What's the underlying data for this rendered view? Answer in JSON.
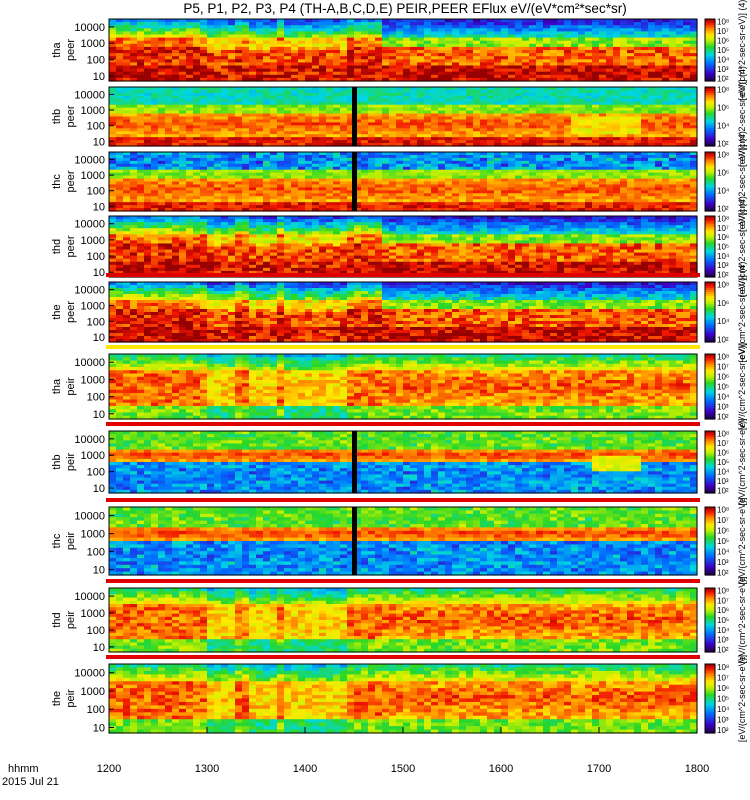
{
  "chart_data": {
    "type": "heatmap",
    "title": "P5, P1, P2, P3, P4 (TH-A,B,C,D,E) PEIR,PEER EFlux eV/(eV*cm²*sec*sr)",
    "xlabel_line1": "hhmm",
    "xlabel_line2": "2015 Jul 21",
    "x_ticks": [
      "1200",
      "1300",
      "1400",
      "1500",
      "1600",
      "1700",
      "1800"
    ],
    "xlim": [
      1200,
      1800
    ],
    "y_ticks": [
      "10",
      "100",
      "1000",
      "10000"
    ],
    "ylim_eV": [
      5,
      30000
    ],
    "colorbar_label_electron": "[eV/(cm^2-sec-sr-eV)] (4)",
    "colorbar_label_ion": "[eV/(cm^2-sec-sr-eV)]",
    "colorbar_ticks": [
      "10²",
      "10³",
      "10⁴",
      "10⁵",
      "10⁶",
      "10⁷",
      "10⁸"
    ],
    "colorbar_range_log10": [
      2,
      8
    ],
    "panels": [
      {
        "probe": "tha",
        "species": "peer",
        "label1": "tha",
        "label2": "peer",
        "profile": "e_active",
        "gap": null,
        "bar": null
      },
      {
        "probe": "thb",
        "species": "peer",
        "label1": "thb",
        "label2": "peer",
        "profile": "e_quiet_b",
        "gap": 1450,
        "bar": null
      },
      {
        "probe": "thc",
        "species": "peer",
        "label1": "thc",
        "label2": "peer",
        "profile": "e_quiet_c",
        "gap": 1450,
        "bar": null
      },
      {
        "probe": "thd",
        "species": "peer",
        "label1": "thd",
        "label2": "peer",
        "profile": "e_active",
        "gap": null,
        "bar": null
      },
      {
        "probe": "the",
        "species": "peer",
        "label1": "the",
        "label2": "peer",
        "profile": "e_active",
        "gap": null,
        "bar": "red"
      },
      {
        "probe": "tha",
        "species": "peir",
        "label1": "tha",
        "label2": "peir",
        "profile": "i_active",
        "gap": null,
        "bar": "yellow"
      },
      {
        "probe": "thb",
        "species": "peir",
        "label1": "thb",
        "label2": "peir",
        "profile": "i_quiet_b",
        "gap": 1450,
        "bar": "red"
      },
      {
        "probe": "thc",
        "species": "peir",
        "label1": "thc",
        "label2": "peir",
        "profile": "i_quiet_c",
        "gap": 1450,
        "bar": "red"
      },
      {
        "probe": "thd",
        "species": "peir",
        "label1": "thd",
        "label2": "peir",
        "profile": "i_active",
        "gap": null,
        "bar": "red"
      },
      {
        "probe": "the",
        "species": "peir",
        "label1": "the",
        "label2": "peir",
        "profile": "i_active",
        "gap": null,
        "bar": "red"
      }
    ]
  }
}
